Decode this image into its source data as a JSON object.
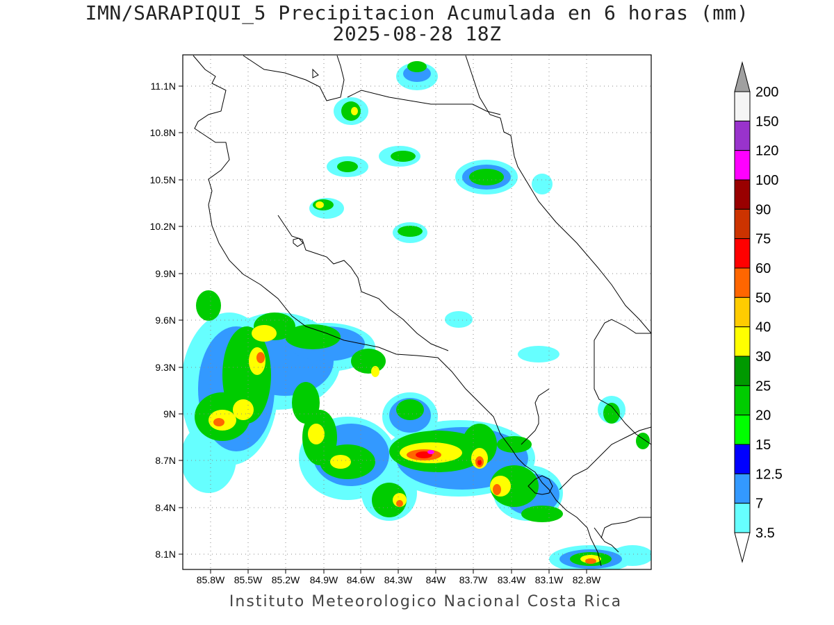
{
  "title": {
    "line1": "IMN/SARAPIQUI_5 Precipitacion Acumulada en 6 horas (mm)",
    "line2": "2025-08-28 18Z"
  },
  "footer": "Instituto Meteorologico Nacional Costa Rica",
  "map": {
    "lon_range": [
      -86.05,
      -82.7
    ],
    "lat_range": [
      8.0,
      11.3
    ],
    "lat_ticks": [
      "11.1N",
      "10.8N",
      "10.5N",
      "10.2N",
      "9.9N",
      "9.6N",
      "9.3N",
      "9N",
      "8.7N",
      "8.4N",
      "8.1N"
    ],
    "lon_ticks": [
      "85.8W",
      "85.5W",
      "85.2W",
      "84.9W",
      "84.6W",
      "84.3W",
      "84W",
      "83.7W",
      "83.4W",
      "83.1W",
      "82.8W"
    ],
    "grid": "dotted"
  },
  "colorbar": {
    "levels": [
      "3.5",
      "7",
      "12.5",
      "15",
      "20",
      "25",
      "30",
      "40",
      "50",
      "60",
      "75",
      "90",
      "100",
      "120",
      "150",
      "200"
    ],
    "colors": [
      "#66ffff",
      "#3399ff",
      "#0000ff",
      "#00ff00",
      "#00cc00",
      "#009900",
      "#ffff00",
      "#ffcc00",
      "#ff6600",
      "#ff0000",
      "#cc3300",
      "#990000",
      "#ff00ff",
      "#9933cc",
      "#f5f5f5",
      "#a0a0a0"
    ]
  }
}
